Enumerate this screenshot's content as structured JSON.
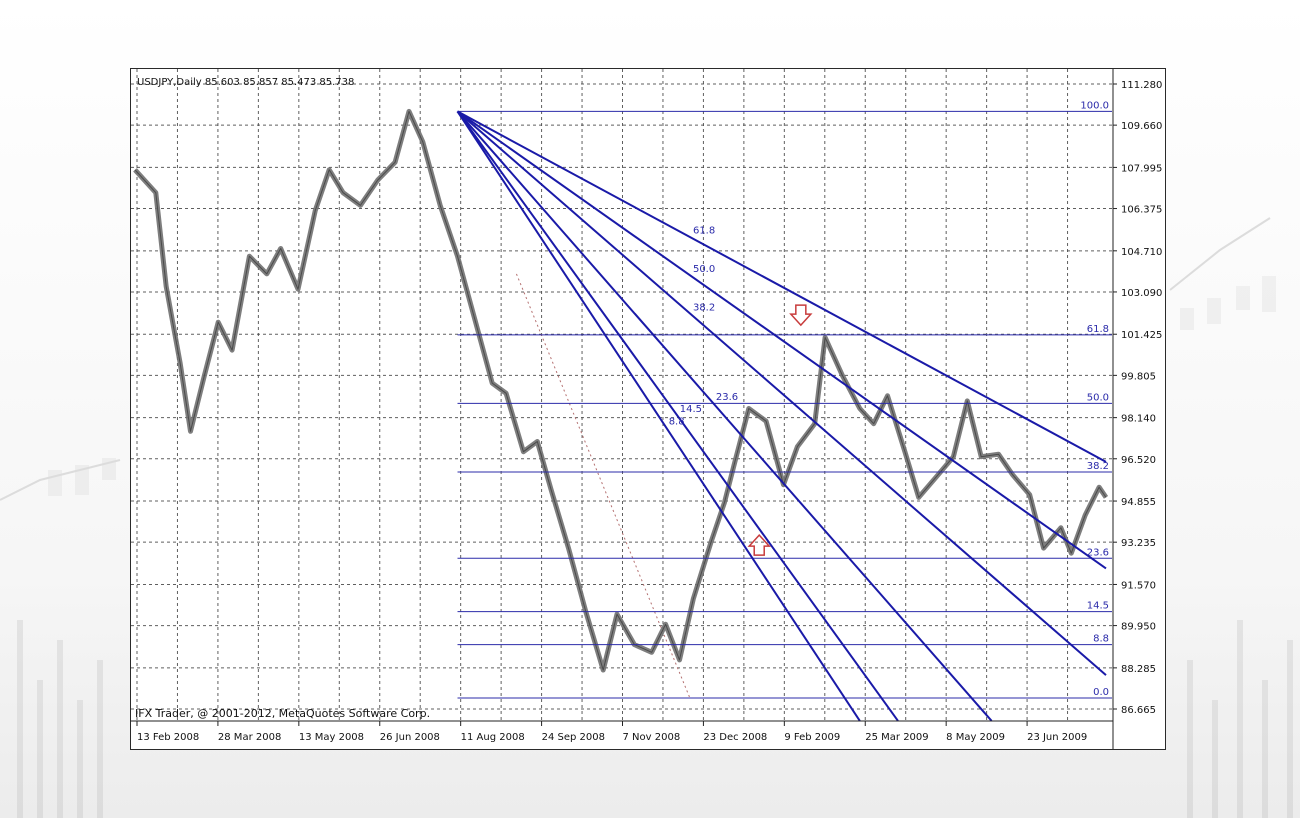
{
  "colors": {
    "fan": "#1a1aa8",
    "fib_hline": "#2b2baa",
    "fib_text": "#2b2baa",
    "price": "#707070",
    "grid": "#444444",
    "arrow": "#c83c3c",
    "trend_dotted": "#b47070"
  },
  "chart": {
    "header": "USDJPY,Daily  85.603 85.857 85.473 85.738",
    "footer": "IFX Trader, @ 2001-2012, MetaQuotes Software Corp."
  },
  "chart_data": {
    "type": "line",
    "title": "",
    "symbol": "USDJPY,Daily",
    "ohlc_readout": [
      "85.603",
      "85.857",
      "85.473",
      "85.738"
    ],
    "ylim": [
      86.665,
      111.28
    ],
    "y_ticks": [
      "111.280",
      "109.660",
      "107.995",
      "106.375",
      "104.710",
      "103.090",
      "101.425",
      "99.805",
      "98.140",
      "96.520",
      "94.855",
      "93.235",
      "91.570",
      "89.950",
      "88.285",
      "86.665"
    ],
    "x_ticks": [
      "13 Feb 2008",
      "28 Mar 2008",
      "13 May 2008",
      "26 Jun 2008",
      "11 Aug 2008",
      "24 Sep 2008",
      "7 Nov 2008",
      "23 Dec 2008",
      "9 Feb 2009",
      "25 Mar 2009",
      "8 May 2009",
      "23 Jun 2009"
    ],
    "x_index_range": [
      0,
      28
    ],
    "price_series": {
      "x": [
        0,
        0.6,
        0.9,
        1.3,
        1.6,
        2.0,
        2.4,
        2.8,
        3.3,
        3.8,
        4.2,
        4.7,
        5.2,
        5.6,
        6.0,
        6.5,
        7.0,
        7.5,
        7.9,
        8.3,
        8.8,
        9.3,
        9.8,
        10.3,
        10.7,
        11.2,
        11.6,
        12.0,
        12.5,
        13.0,
        13.5,
        13.9,
        14.4,
        14.9,
        15.3,
        15.7,
        16.1,
        16.6,
        17.0,
        17.3,
        17.7,
        18.2,
        18.7,
        19.1,
        19.6,
        19.9,
        20.4,
        20.9,
        21.3,
        21.7,
        22.2,
        22.6,
        23.1,
        23.6,
        24.0,
        24.4,
        24.9,
        25.3,
        25.8,
        26.2,
        26.7,
        27.0,
        27.4,
        27.8,
        28.0
      ],
      "y": [
        107.9,
        107.0,
        103.3,
        100.3,
        97.6,
        99.8,
        101.9,
        100.8,
        104.5,
        103.8,
        104.8,
        103.2,
        106.3,
        107.9,
        107.0,
        106.5,
        107.5,
        108.2,
        110.2,
        109.0,
        106.5,
        104.5,
        102.0,
        99.5,
        99.1,
        96.8,
        97.2,
        95.3,
        93.0,
        90.5,
        88.2,
        90.4,
        89.2,
        88.9,
        90.0,
        88.6,
        91.0,
        93.2,
        94.8,
        96.4,
        98.5,
        98.0,
        95.5,
        97.0,
        97.9,
        101.3,
        99.8,
        98.5,
        97.9,
        99.0,
        96.8,
        95.0,
        95.8,
        96.6,
        98.8,
        96.6,
        96.7,
        95.9,
        95.1,
        93.0,
        93.8,
        92.8,
        94.3,
        95.4,
        95.0
      ]
    },
    "fan_origin": {
      "x": 9.3,
      "y": 110.2
    },
    "fan_lines": [
      {
        "level": "61.8",
        "x2": 28,
        "y2": 96.4
      },
      {
        "level": "50.0",
        "x2": 28,
        "y2": 92.2
      },
      {
        "level": "38.2",
        "x2": 28,
        "y2": 88.0
      },
      {
        "level": "23.6",
        "x2": 24.7,
        "y2": 86.2
      },
      {
        "level": "14.5",
        "x2": 22.0,
        "y2": 86.2
      },
      {
        "level": "8.8",
        "x2": 20.9,
        "y2": 86.2
      }
    ],
    "fib_levels": [
      {
        "label": "100.0",
        "price": 110.2,
        "x_start": 9.3
      },
      {
        "label": "61.8",
        "price": 101.4,
        "x_start": 9.3
      },
      {
        "label": "50.0",
        "price": 98.7,
        "x_start": 9.3
      },
      {
        "label": "38.2",
        "price": 96.0,
        "x_start": 9.3
      },
      {
        "label": "23.6",
        "price": 92.6,
        "x_start": 9.3
      },
      {
        "label": "14.5",
        "price": 90.5,
        "x_start": 9.3
      },
      {
        "label": "8.8",
        "price": 89.2,
        "x_start": 9.3
      },
      {
        "label": "0.0",
        "price": 87.1,
        "x_start": 9.3
      }
    ],
    "trendline_dotted": {
      "x1": 11.0,
      "y1": 103.8,
      "x2": 16.0,
      "y2": 87.1
    },
    "arrows": [
      {
        "direction": "down",
        "x": 19.2,
        "y": 102.1
      },
      {
        "direction": "up",
        "x": 18.0,
        "y": 93.2
      }
    ]
  }
}
